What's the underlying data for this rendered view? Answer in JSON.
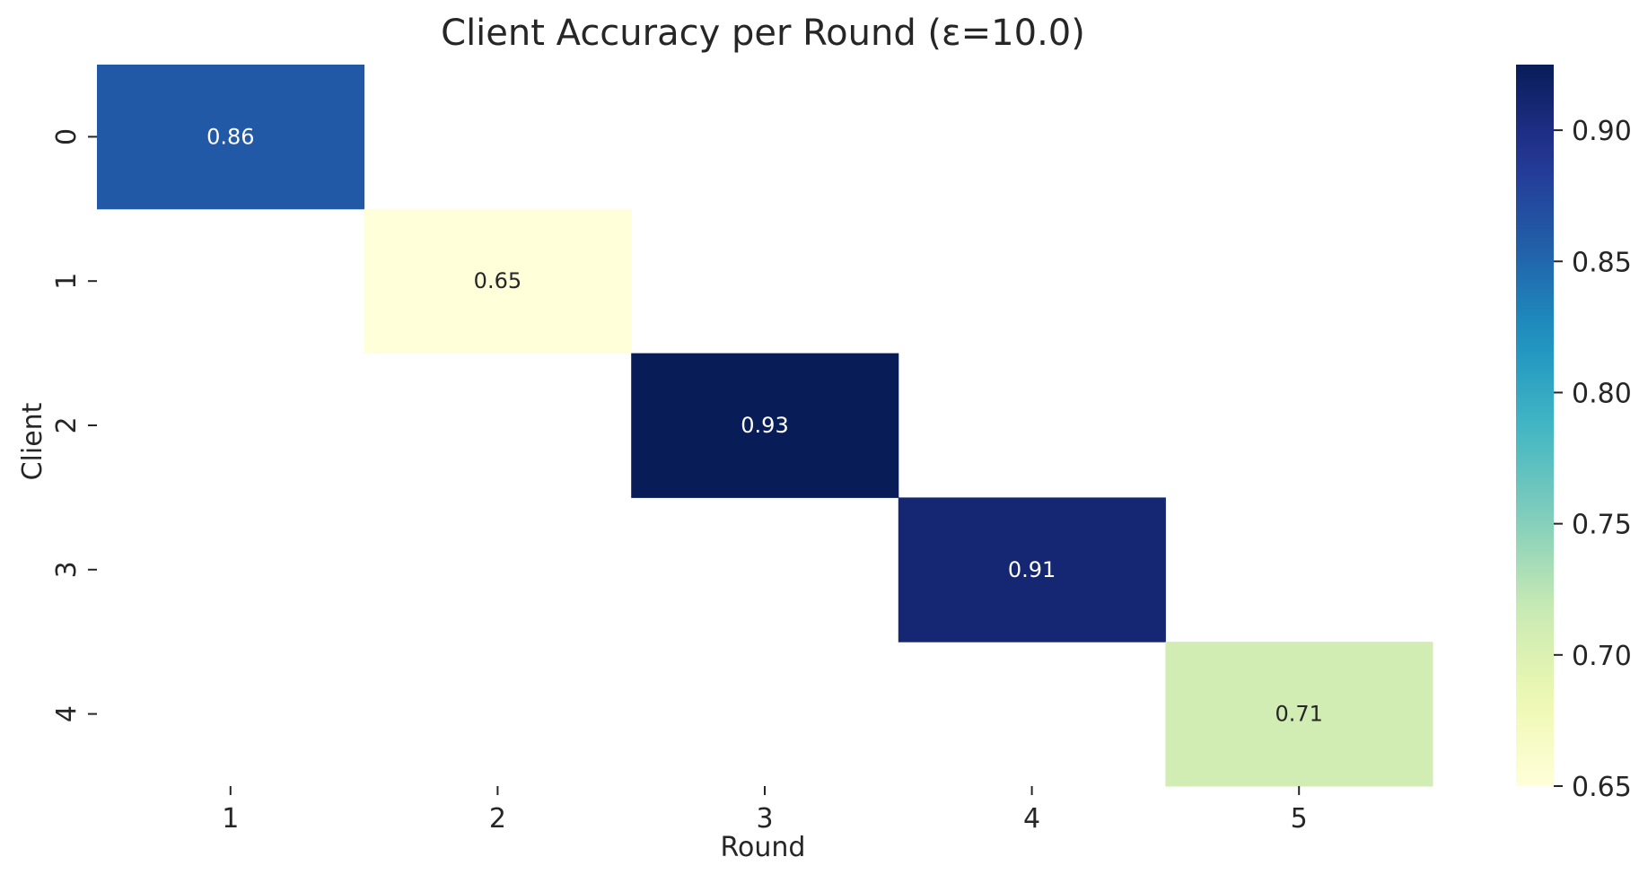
{
  "chart_data": {
    "type": "heatmap",
    "title": "Client Accuracy per Round (ε=10.0)",
    "xlabel": "Round",
    "ylabel": "Client",
    "x_categories": [
      "1",
      "2",
      "3",
      "4",
      "5"
    ],
    "y_categories": [
      "0",
      "1",
      "2",
      "3",
      "4"
    ],
    "values": [
      [
        0.86,
        null,
        null,
        null,
        null
      ],
      [
        null,
        0.65,
        null,
        null,
        null
      ],
      [
        null,
        null,
        0.93,
        null,
        null
      ],
      [
        null,
        null,
        null,
        0.91,
        null
      ],
      [
        null,
        null,
        null,
        null,
        0.71
      ]
    ],
    "cell_labels": [
      [
        "0.86",
        "",
        "",
        "",
        ""
      ],
      [
        "",
        "0.65",
        "",
        "",
        ""
      ],
      [
        "",
        "",
        "0.93",
        "",
        ""
      ],
      [
        "",
        "",
        "",
        "0.91",
        ""
      ],
      [
        "",
        "",
        "",
        "",
        "0.71"
      ]
    ],
    "colormap": "YlGnBu",
    "colorbar": {
      "min": 0.65,
      "max": 0.925,
      "ticks": [
        0.65,
        0.7,
        0.75,
        0.8,
        0.85,
        0.9
      ],
      "tick_labels": [
        "0.65",
        "0.70",
        "0.75",
        "0.80",
        "0.85",
        "0.90"
      ]
    },
    "colors": {
      "text": "#262626",
      "axis": "#262626"
    }
  }
}
